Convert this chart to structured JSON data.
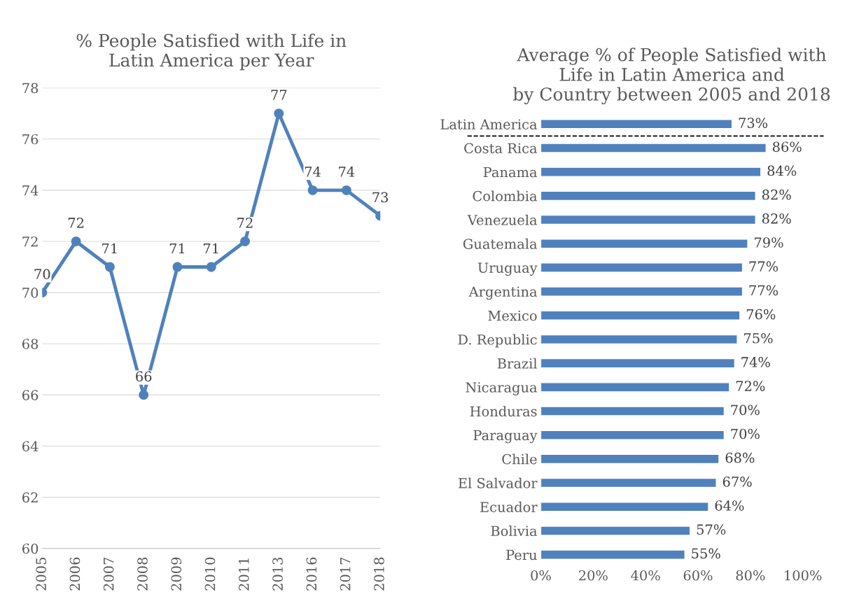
{
  "chart_data": [
    {
      "type": "line",
      "title": "% People Satisfied with Life in\nLatin America per Year",
      "categories": [
        "2005",
        "2006",
        "2007",
        "2008",
        "2009",
        "2010",
        "2011",
        "2013",
        "2016",
        "2017",
        "2018"
      ],
      "series": [
        {
          "color": "#4f81bd",
          "values": [
            70,
            72,
            71,
            66,
            71,
            71,
            72,
            77,
            74,
            74,
            73
          ]
        }
      ],
      "ylim": [
        60,
        78
      ],
      "yticks": [
        60,
        62,
        64,
        66,
        68,
        70,
        72,
        74,
        76,
        78
      ],
      "grid": "y",
      "marker": "circle",
      "line_style": "solid",
      "data_labels": true
    },
    {
      "type": "bar",
      "orientation": "horizontal",
      "title": "Average % of People Satisfied with\nLife in Latin America and\nby Country between 2005 and 2018",
      "categories": [
        "Latin America",
        "Costa Rica",
        "Panama",
        "Colombia",
        "Venezuela",
        "Guatemala",
        "Uruguay",
        "Argentina",
        "Mexico",
        "D. Republic",
        "Brazil",
        "Nicaragua",
        "Honduras",
        "Paraguay",
        "Chile",
        "El Salvador",
        "Ecuador",
        "Bolivia",
        "Peru"
      ],
      "values": [
        73,
        86,
        84,
        82,
        82,
        79,
        77,
        77,
        76,
        75,
        74,
        72,
        70,
        70,
        68,
        67,
        64,
        57,
        55
      ],
      "value_labels": [
        "73%",
        "86%",
        "84%",
        "82%",
        "82%",
        "79%",
        "77%",
        "77%",
        "76%",
        "75%",
        "74%",
        "72%",
        "70%",
        "70%",
        "68%",
        "67%",
        "64%",
        "57%",
        "55%"
      ],
      "color": "#4f81bd",
      "xlim": [
        0,
        100
      ],
      "xticks": [
        {
          "value": 0,
          "label": "0%"
        },
        {
          "value": 20,
          "label": "20%"
        },
        {
          "value": 40,
          "label": "40%"
        },
        {
          "value": 60,
          "label": "60%"
        },
        {
          "value": 80,
          "label": "80%"
        },
        {
          "value": 100,
          "label": "100%"
        }
      ],
      "grid": false
    }
  ]
}
